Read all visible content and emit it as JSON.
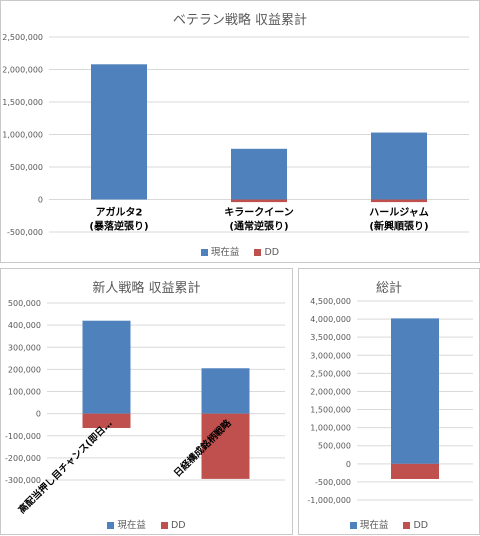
{
  "colors": {
    "current": "#4f81bd",
    "dd": "#c0504d",
    "grid": "#d9d9d9",
    "axis_text": "#595959"
  },
  "legend": {
    "current_label": "現在益",
    "dd_label": "DD"
  },
  "chart_data": [
    {
      "type": "bar",
      "title": "ベテラン戦略 収益累計",
      "categories": [
        "アガルタ2\n(暴落逆張り)",
        "キラークイーン\n(通常逆張り)",
        "ハールジャム\n(新興順張り)"
      ],
      "series": [
        {
          "name": "現在益",
          "values": [
            2080000,
            780000,
            1030000
          ]
        },
        {
          "name": "DD",
          "values": [
            0,
            -40000,
            -40000
          ]
        }
      ],
      "ylim": [
        -500000,
        2500000
      ],
      "yticks": [
        "-500,000",
        "0",
        "500,000",
        "1,000,000",
        "1,500,000",
        "2,000,000",
        "2,500,000"
      ],
      "grid": true,
      "legend": "bottom"
    },
    {
      "type": "bar",
      "title": "新人戦略 収益累計",
      "categories": [
        "高配当押し目チャンス(即日…",
        "日経構成銘柄戦略"
      ],
      "series": [
        {
          "name": "現在益",
          "values": [
            420000,
            205000
          ]
        },
        {
          "name": "DD",
          "values": [
            -65000,
            -295000
          ]
        }
      ],
      "ylim": [
        -300000,
        500000
      ],
      "yticks": [
        "-300,000",
        "-200,000",
        "-100,000",
        "0",
        "100,000",
        "200,000",
        "300,000",
        "400,000",
        "500,000"
      ],
      "grid": true,
      "legend": "bottom"
    },
    {
      "type": "bar",
      "title": "総計",
      "categories": [
        ""
      ],
      "series": [
        {
          "name": "現在益",
          "values": [
            4020000
          ]
        },
        {
          "name": "DD",
          "values": [
            -420000
          ]
        }
      ],
      "ylim": [
        -1000000,
        4500000
      ],
      "yticks": [
        "-1,000,000",
        "-500,000",
        "0",
        "500,000",
        "1,000,000",
        "1,500,000",
        "2,000,000",
        "2,500,000",
        "3,000,000",
        "3,500,000",
        "4,000,000",
        "4,500,000"
      ],
      "grid": true,
      "legend": "bottom"
    }
  ]
}
